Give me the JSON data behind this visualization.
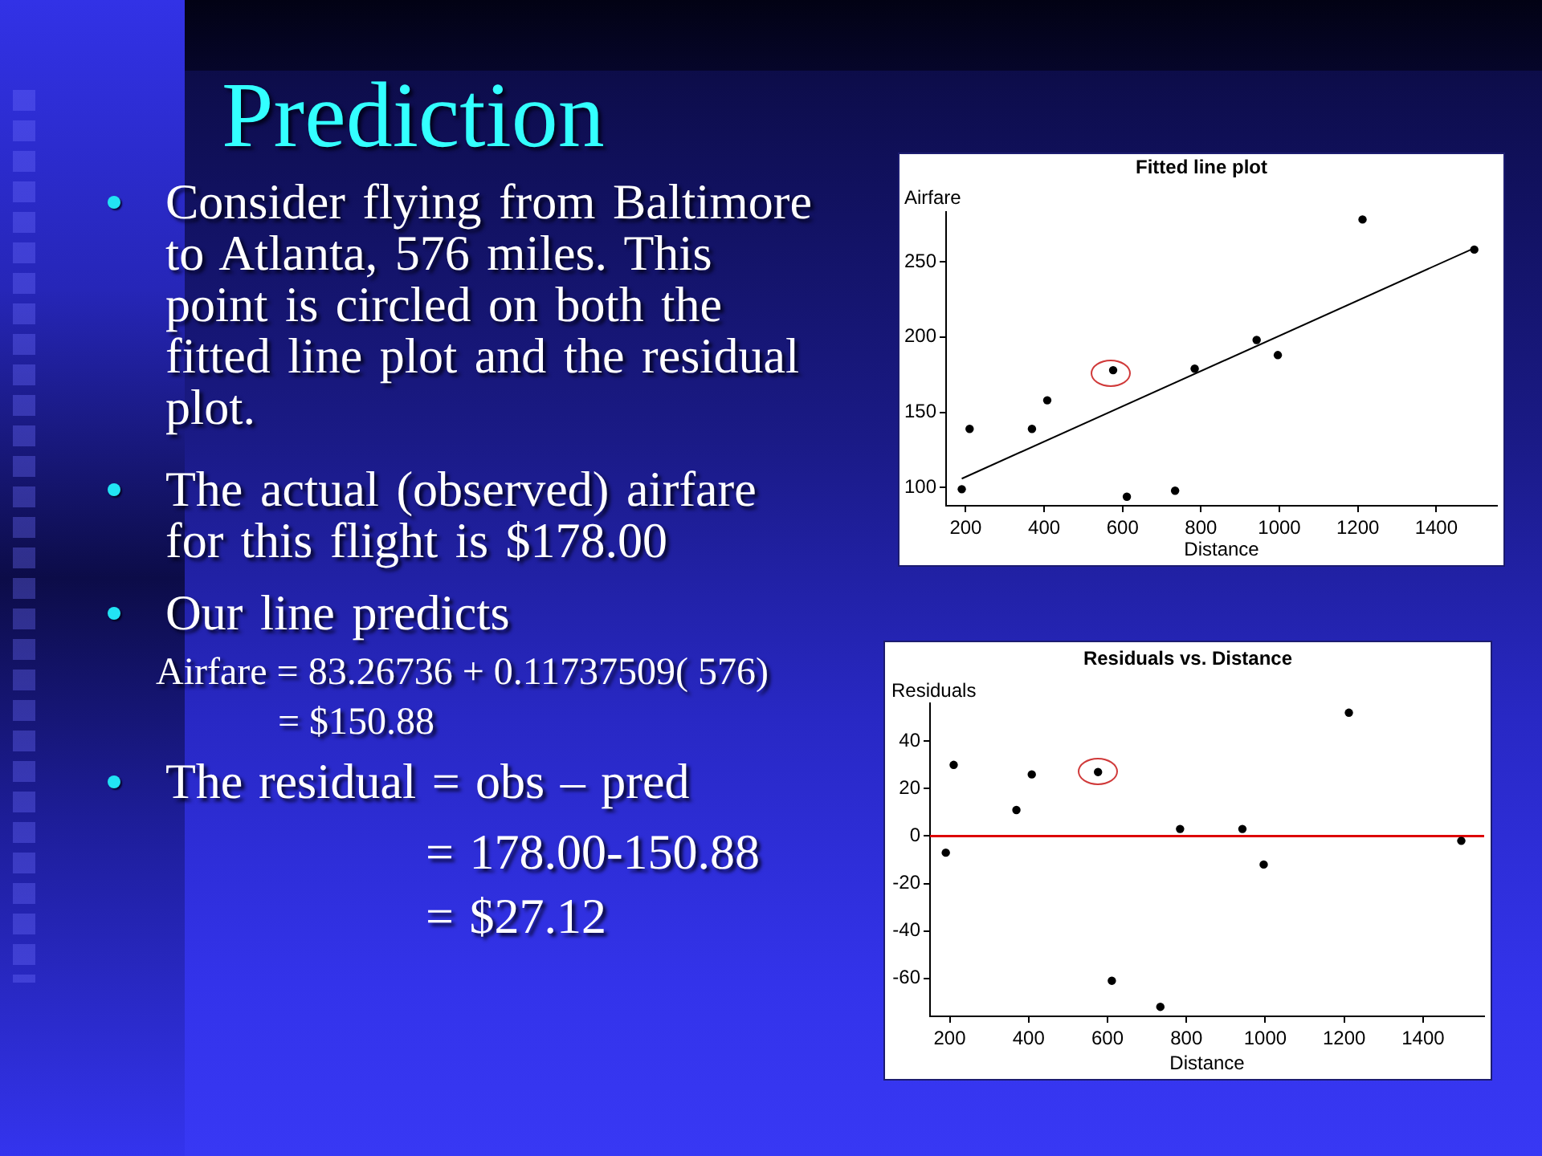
{
  "chart_data": [
    {
      "type": "other",
      "title": "Prediction",
      "annotations": [
        "Consider flying from Baltimore to Atlanta, 576 miles. This point is circled on both the fitted line plot and the residual plot.",
        "The actual (observed) airfare for this flight is $178.00",
        "Our line predicts",
        "Airfare = 83.26736 + 0.11737509( 576)",
        "= $150.88",
        "The residual = obs – pred",
        "= 178.00-150.88",
        "= $27.12"
      ]
    },
    {
      "type": "scatter",
      "title": "Fitted line plot",
      "xlabel": "Distance",
      "ylabel": "Airfare",
      "xlim": [
        150,
        1555
      ],
      "ylim": [
        88,
        283
      ],
      "xticks": [
        200,
        400,
        600,
        800,
        1000,
        1200,
        1400
      ],
      "yticks": [
        100,
        150,
        200,
        250
      ],
      "marker": "circle",
      "series": [
        {
          "type": "scatter",
          "color": "#000000",
          "x": [
            190,
            210,
            369,
            408,
            576,
            611,
            734,
            784,
            942,
            996,
            1212,
            1497
          ],
          "values": [
            99,
            139,
            139,
            158,
            178,
            94,
            98,
            179,
            198,
            188,
            278,
            258
          ]
        },
        {
          "type": "line",
          "marker": "none",
          "color": "#000000",
          "x": [
            190,
            1497
          ],
          "values": [
            106,
            259
          ]
        }
      ]
    },
    {
      "type": "scatter",
      "title": "Residuals vs. Distance",
      "xlabel": "Distance",
      "ylabel": "Residuals",
      "xlim": [
        150,
        1555
      ],
      "ylim": [
        -76,
        56
      ],
      "xticks": [
        200,
        400,
        600,
        800,
        1000,
        1200,
        1400
      ],
      "yticks": [
        -60,
        -40,
        -20,
        0,
        20,
        40
      ],
      "marker": "circle",
      "ref_lines": [
        {
          "axis": "y",
          "value": 0,
          "color": "#dd0000"
        }
      ],
      "color": "#000000",
      "x": [
        190,
        210,
        369,
        408,
        576,
        611,
        734,
        784,
        942,
        996,
        1212,
        1497
      ],
      "values": [
        -7,
        30,
        11,
        26,
        27,
        -61,
        -72,
        3,
        3,
        -12,
        52,
        -2
      ]
    }
  ]
}
